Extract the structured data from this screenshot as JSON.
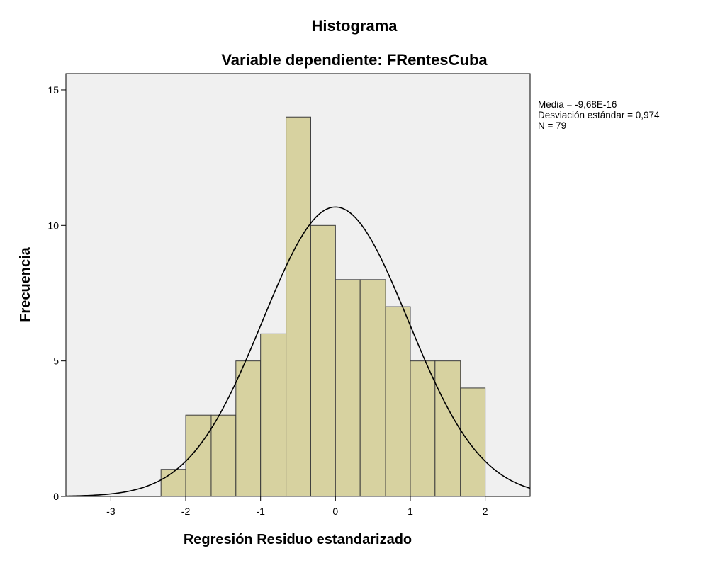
{
  "chart_data": {
    "type": "bar",
    "title": "Histograma",
    "subtitle": "Variable dependiente: FRentesCuba",
    "xlabel": "Regresión Residuo estandarizado",
    "ylabel": "Frecuencia",
    "xlim": [
      -3.6,
      2.6
    ],
    "ylim": [
      0,
      15.6
    ],
    "x_ticks": [
      {
        "value": -3,
        "label": "-3"
      },
      {
        "value": -2,
        "label": "-2"
      },
      {
        "value": -1,
        "label": "-1"
      },
      {
        "value": 0,
        "label": "0"
      },
      {
        "value": 1,
        "label": "1"
      },
      {
        "value": 2,
        "label": "2"
      }
    ],
    "y_ticks": [
      {
        "value": 0,
        "label": "0"
      },
      {
        "value": 5,
        "label": "5"
      },
      {
        "value": 10,
        "label": "10"
      },
      {
        "value": 15,
        "label": "15"
      }
    ],
    "bins": [
      {
        "from": -2.33,
        "to": -2.0,
        "count": 1
      },
      {
        "from": -2.0,
        "to": -1.66,
        "count": 3
      },
      {
        "from": -1.66,
        "to": -1.33,
        "count": 3
      },
      {
        "from": -1.33,
        "to": -1.0,
        "count": 5
      },
      {
        "from": -1.0,
        "to": -0.66,
        "count": 6
      },
      {
        "from": -0.66,
        "to": -0.33,
        "count": 14
      },
      {
        "from": -0.33,
        "to": 0.0,
        "count": 10
      },
      {
        "from": 0.0,
        "to": 0.33,
        "count": 8
      },
      {
        "from": 0.33,
        "to": 0.67,
        "count": 8
      },
      {
        "from": 0.67,
        "to": 1.0,
        "count": 7
      },
      {
        "from": 1.0,
        "to": 1.33,
        "count": 5
      },
      {
        "from": 1.33,
        "to": 1.67,
        "count": 5
      },
      {
        "from": 1.67,
        "to": 2.0,
        "count": 4
      }
    ],
    "normal_curve": {
      "mean": -9.68e-16,
      "std": 0.974,
      "n": 79
    },
    "stats_lines": [
      "Media = -9,68E-16",
      "Desviación estándar = 0,974",
      "N = 79"
    ],
    "grid": false,
    "legend": "right",
    "colors": {
      "bar_fill": "#d7d2a0",
      "bar_stroke": "#3a3a3a",
      "plot_background": "#f0f0f0",
      "curve": "#000000"
    }
  }
}
